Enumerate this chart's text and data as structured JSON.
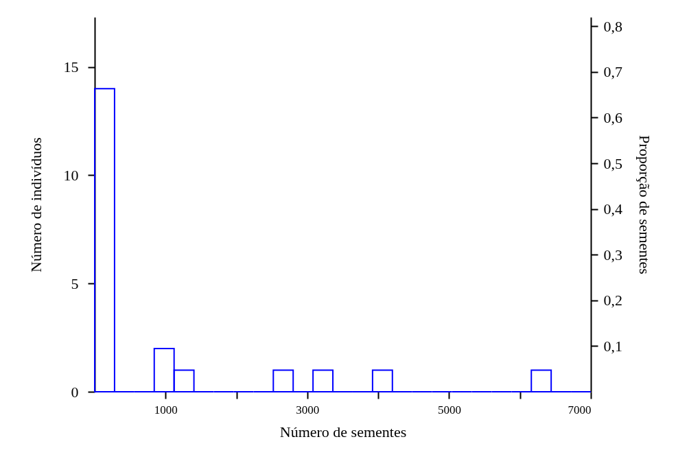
{
  "chart_data": {
    "type": "histogram",
    "color": "#0000ff",
    "bins": [
      0,
      280,
      560,
      840,
      1120,
      1400,
      1680,
      1960,
      2240,
      2520,
      2800,
      3080,
      3360,
      3640,
      3920,
      4200,
      4480,
      4760,
      5040,
      5320,
      5600,
      5880,
      6160,
      6440,
      6720,
      7000
    ],
    "values": [
      14,
      0,
      0,
      2,
      1,
      0,
      0,
      0,
      0,
      1,
      0,
      1,
      0,
      0,
      1,
      0,
      0,
      0,
      0,
      0,
      0,
      0,
      1,
      0,
      0
    ],
    "xlabel": "Número de sementes",
    "ylabel": "Número de indivíduos",
    "y2label": "Proporção de sementes",
    "xlim": [
      0,
      7000
    ],
    "xticks": [
      1000,
      {
        "value": 2000,
        "label": null
      },
      3000,
      {
        "value": 4000,
        "label": null
      },
      5000,
      {
        "value": 6000,
        "label": null
      },
      7000
    ],
    "ylim": [
      0,
      17.3
    ],
    "yticks": [
      0,
      5,
      10,
      15
    ],
    "y2lim": [
      0,
      0.82
    ],
    "y2ticks": [
      {
        "value": 0.1,
        "label": "0,1"
      },
      {
        "value": 0.2,
        "label": "0,2"
      },
      {
        "value": 0.3,
        "label": "0,3"
      },
      {
        "value": 0.4,
        "label": "0,4"
      },
      {
        "value": 0.5,
        "label": "0,5"
      },
      {
        "value": 0.6,
        "label": "0,6"
      },
      {
        "value": 0.7,
        "label": "0,7"
      },
      {
        "value": 0.8,
        "label": "0,8"
      }
    ]
  }
}
